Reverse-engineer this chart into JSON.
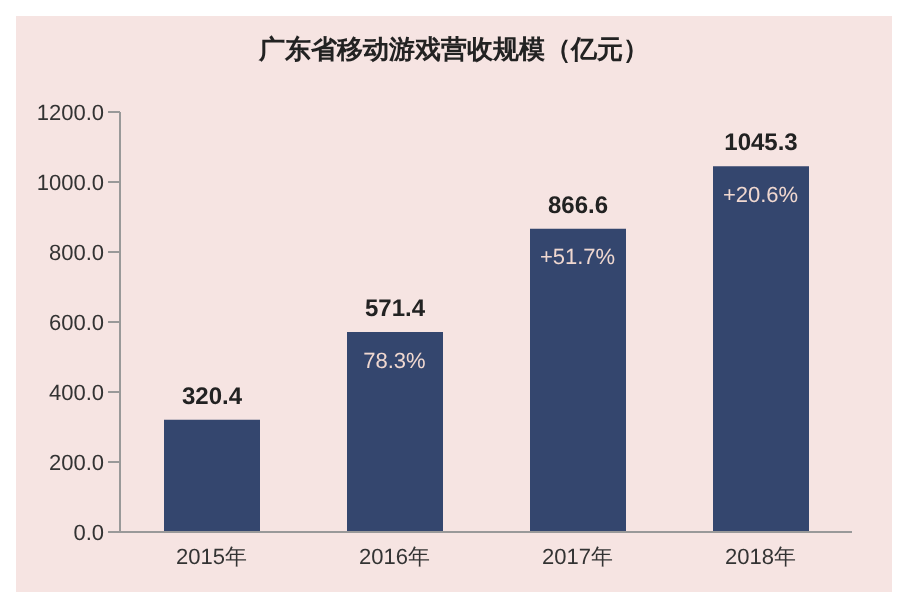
{
  "chart_data": {
    "type": "bar",
    "title": "广东省移动游戏营收规模（亿元）",
    "categories": [
      "2015年",
      "2016年",
      "2017年",
      "2018年"
    ],
    "values": [
      320.4,
      571.4,
      866.6,
      1045.3
    ],
    "color": "#34466e",
    "ylim": [
      0,
      1200
    ],
    "yticks": [
      {
        "value": 0,
        "label": "0.0"
      },
      {
        "value": 200,
        "label": "200.0"
      },
      {
        "value": 400,
        "label": "400.0"
      },
      {
        "value": 600,
        "label": "600.0"
      },
      {
        "value": 800,
        "label": "800.0"
      },
      {
        "value": 1000,
        "label": "1000.0"
      },
      {
        "value": 1200,
        "label": "1200.0"
      }
    ],
    "data_labels": true,
    "annotations": [
      {
        "text": "78.3%",
        "x": "2016年",
        "y": 571.4
      },
      {
        "text": "+51.7%",
        "x": "2017年",
        "y": 866.6
      },
      {
        "text": "+20.6%",
        "x": "2018年",
        "y": 1045.3
      }
    ],
    "grid": false
  }
}
